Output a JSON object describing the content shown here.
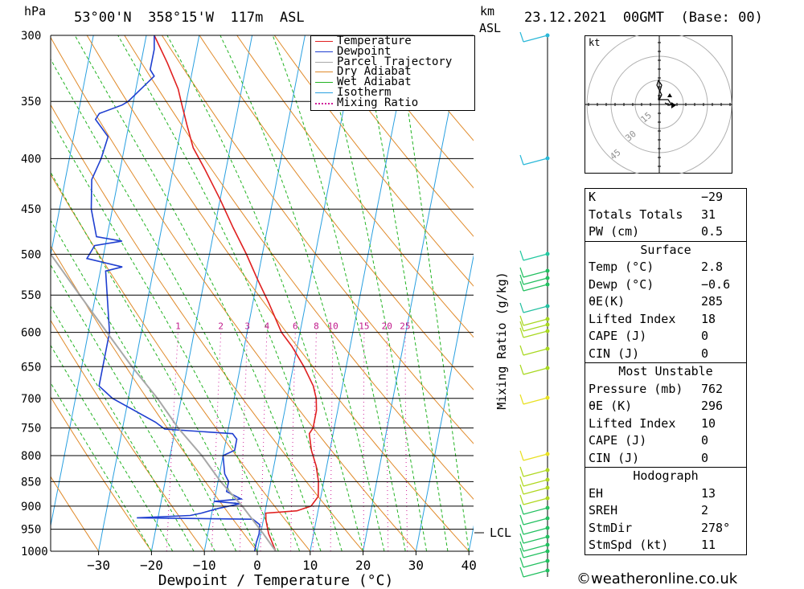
{
  "header": {
    "pressure_unit": "hPa",
    "location": "53°00'N  358°15'W  117m  ASL",
    "km_label": "km",
    "asl_label": "ASL",
    "datetime": "23.12.2021  00GMT  (Base: 00)"
  },
  "chart_data": {
    "type": "line",
    "subtype": "skew-T log-P",
    "xlabel": "Dewpoint / Temperature (°C)",
    "ylabel": "hPa",
    "mixing_ratio_axis_label": "Mixing Ratio (g/kg)",
    "xlim": [
      -40,
      40
    ],
    "ylim": [
      1000,
      300
    ],
    "x_ticks": [
      -30,
      -20,
      -10,
      0,
      10,
      20,
      30,
      40
    ],
    "x_tick_labels": [
      "−30",
      "−20",
      "−10",
      "0",
      "10",
      "20",
      "30",
      "40"
    ],
    "y_ticks": [
      300,
      350,
      400,
      450,
      500,
      550,
      600,
      650,
      700,
      750,
      800,
      850,
      900,
      950,
      1000
    ],
    "mixing_ratio_labels": [
      "1",
      "2",
      "3",
      "4",
      "6",
      "8",
      "10",
      "15",
      "20",
      "25"
    ],
    "legend_position": "top-right",
    "legend": [
      {
        "name": "Temperature",
        "color": "#e02020",
        "style": "solid"
      },
      {
        "name": "Dewpoint",
        "color": "#1f3fd0",
        "style": "solid"
      },
      {
        "name": "Parcel Trajectory",
        "color": "#a8a8a8",
        "style": "solid"
      },
      {
        "name": "Dry Adiabat",
        "color": "#e08a2a",
        "style": "solid"
      },
      {
        "name": "Wet Adiabat",
        "color": "#22b322",
        "style": "solid"
      },
      {
        "name": "Isotherm",
        "color": "#2aa0e0",
        "style": "solid"
      },
      {
        "name": "Mixing Ratio",
        "color": "#d0209a",
        "style": "dotted"
      }
    ],
    "series": [
      {
        "name": "Temperature",
        "color": "#e02020",
        "points": [
          [
            1000,
            3.5
          ],
          [
            960,
            1.5
          ],
          [
            930,
            0.5
          ],
          [
            915,
            0.2
          ],
          [
            910,
            6
          ],
          [
            900,
            8.5
          ],
          [
            880,
            9.5
          ],
          [
            850,
            9
          ],
          [
            820,
            8
          ],
          [
            790,
            6.5
          ],
          [
            760,
            5.5
          ],
          [
            750,
            6
          ],
          [
            720,
            6
          ],
          [
            700,
            5.5
          ],
          [
            680,
            4.5
          ],
          [
            650,
            2
          ],
          [
            620,
            -1
          ],
          [
            600,
            -3.5
          ],
          [
            560,
            -7
          ],
          [
            530,
            -10
          ],
          [
            500,
            -13
          ],
          [
            470,
            -16.5
          ],
          [
            440,
            -20
          ],
          [
            410,
            -24
          ],
          [
            390,
            -27
          ],
          [
            370,
            -29
          ],
          [
            350,
            -31
          ],
          [
            340,
            -32
          ],
          [
            320,
            -35
          ],
          [
            300,
            -38.5
          ]
        ]
      },
      {
        "name": "Dewpoint",
        "color": "#1f3fd0",
        "points": [
          [
            1000,
            -0.5
          ],
          [
            980,
            -0.5
          ],
          [
            960,
            -0.3
          ],
          [
            940,
            -0.5
          ],
          [
            928,
            -2
          ],
          [
            925,
            -24
          ],
          [
            920,
            -14
          ],
          [
            915,
            -12
          ],
          [
            905,
            -9
          ],
          [
            895,
            -5
          ],
          [
            890,
            -10
          ],
          [
            885,
            -5
          ],
          [
            880,
            -6
          ],
          [
            870,
            -8
          ],
          [
            850,
            -8
          ],
          [
            835,
            -9
          ],
          [
            800,
            -10
          ],
          [
            790,
            -8
          ],
          [
            770,
            -8
          ],
          [
            760,
            -9
          ],
          [
            752,
            -22
          ],
          [
            740,
            -24
          ],
          [
            700,
            -33
          ],
          [
            680,
            -36
          ],
          [
            600,
            -36
          ],
          [
            520,
            -39
          ],
          [
            515,
            -36
          ],
          [
            505,
            -43
          ],
          [
            490,
            -42
          ],
          [
            485,
            -37
          ],
          [
            480,
            -42
          ],
          [
            450,
            -44
          ],
          [
            420,
            -45
          ],
          [
            400,
            -44
          ],
          [
            380,
            -43.5
          ],
          [
            365,
            -46.5
          ],
          [
            360,
            -46
          ],
          [
            353,
            -42
          ],
          [
            350,
            -41
          ],
          [
            330,
            -37
          ],
          [
            325,
            -38
          ],
          [
            310,
            -38
          ],
          [
            300,
            -38.5
          ]
        ]
      },
      {
        "name": "Parcel Trajectory",
        "color": "#a8a8a8",
        "points": [
          [
            1000,
            3.5
          ],
          [
            960,
            0.5
          ],
          [
            900,
            -4.5
          ],
          [
            850,
            -9.5
          ],
          [
            800,
            -14
          ],
          [
            750,
            -19.5
          ],
          [
            700,
            -24.5
          ],
          [
            650,
            -30.5
          ],
          [
            600,
            -36.5
          ],
          [
            550,
            -43
          ],
          [
            500,
            -50
          ],
          [
            450,
            -57
          ],
          [
            400,
            -64
          ],
          [
            350,
            -70
          ],
          [
            300,
            -72
          ]
        ]
      }
    ],
    "wind_profile_note": "wind barbs shown along right-hand column"
  },
  "hodograph": {
    "unit_label": "kt",
    "ring_labels": [
      "15",
      "30",
      "45"
    ]
  },
  "indices": [
    {
      "label": "K",
      "value": "−29"
    },
    {
      "label": "Totals Totals",
      "value": "31"
    },
    {
      "label": "PW (cm)",
      "value": "0.5"
    }
  ],
  "surface": {
    "title": "Surface",
    "rows": [
      {
        "label": "Temp (°C)",
        "value": "2.8"
      },
      {
        "label": "Dewp (°C)",
        "value": "−0.6"
      },
      {
        "label": "θE(K)",
        "value": "285"
      },
      {
        "label": "Lifted Index",
        "value": "18"
      },
      {
        "label": "CAPE (J)",
        "value": "0"
      },
      {
        "label": "CIN (J)",
        "value": "0"
      }
    ]
  },
  "most_unstable": {
    "title": "Most Unstable",
    "rows": [
      {
        "label": "Pressure (mb)",
        "value": "762"
      },
      {
        "label": "θE (K)",
        "value": "296"
      },
      {
        "label": "Lifted Index",
        "value": "10"
      },
      {
        "label": "CAPE (J)",
        "value": "0"
      },
      {
        "label": "CIN (J)",
        "value": "0"
      }
    ]
  },
  "hodograph_table": {
    "title": "Hodograph",
    "rows": [
      {
        "label": "EH",
        "value": "13"
      },
      {
        "label": "SREH",
        "value": "2"
      },
      {
        "label": "StmDir",
        "value": "278°"
      },
      {
        "label": "StmSpd (kt)",
        "value": "11"
      }
    ]
  },
  "lcl_label": "LCL",
  "footer": {
    "copyright": "©weatheronline.co.uk"
  }
}
